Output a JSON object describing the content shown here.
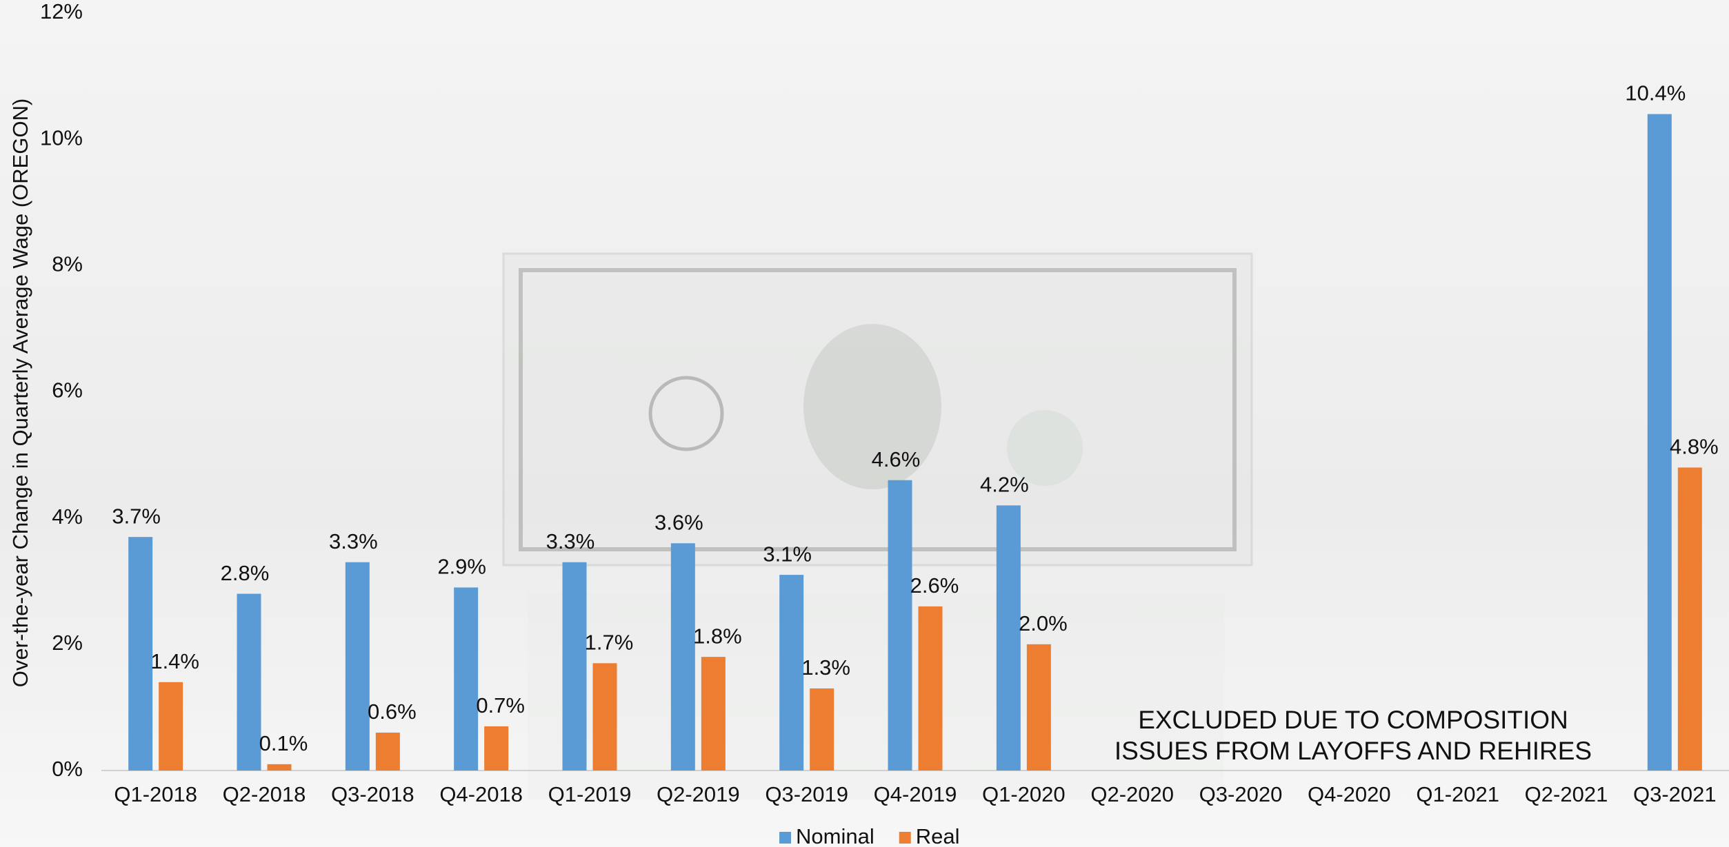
{
  "chart_data": {
    "type": "bar",
    "y_label": "Over-the-year Change in Quarterly Average Wage (OREGON)",
    "categories": [
      "Q1-2018",
      "Q2-2018",
      "Q3-2018",
      "Q4-2018",
      "Q1-2019",
      "Q2-2019",
      "Q3-2019",
      "Q4-2019",
      "Q1-2020",
      "Q2-2020",
      "Q3-2020",
      "Q4-2020",
      "Q1-2021",
      "Q2-2021",
      "Q3-2021"
    ],
    "series": [
      {
        "name": "Nominal",
        "color": "#5b9bd5",
        "values": [
          3.7,
          2.8,
          3.3,
          2.9,
          3.3,
          3.6,
          3.1,
          4.6,
          4.2,
          null,
          null,
          null,
          null,
          null,
          10.4
        ],
        "value_labels": [
          "3.7%",
          "2.8%",
          "3.3%",
          "2.9%",
          "3.3%",
          "3.6%",
          "3.1%",
          "4.6%",
          "4.2%",
          null,
          null,
          null,
          null,
          null,
          "10.4%"
        ]
      },
      {
        "name": "Real",
        "color": "#ed7d31",
        "values": [
          1.4,
          0.1,
          0.6,
          0.7,
          1.7,
          1.8,
          1.3,
          2.6,
          2.0,
          null,
          null,
          null,
          null,
          null,
          4.8
        ],
        "value_labels": [
          "1.4%",
          "0.1%",
          "0.6%",
          "0.7%",
          "1.7%",
          "1.8%",
          "1.3%",
          "2.6%",
          "2.0%",
          null,
          null,
          null,
          null,
          null,
          "4.8%"
        ]
      }
    ],
    "ylim": [
      0,
      12
    ],
    "yticks": [
      {
        "value": 0,
        "label": "0%"
      },
      {
        "value": 2,
        "label": "2%"
      },
      {
        "value": 4,
        "label": "4%"
      },
      {
        "value": 6,
        "label": "6%"
      },
      {
        "value": 8,
        "label": "8%"
      },
      {
        "value": 10,
        "label": "10%"
      },
      {
        "value": 12,
        "label": "12%"
      }
    ],
    "grid": false,
    "legend": "bottom",
    "annotation": [
      "EXCLUDED DUE TO COMPOSITION",
      "ISSUES FROM LAYOFFS AND REHIRES"
    ]
  }
}
